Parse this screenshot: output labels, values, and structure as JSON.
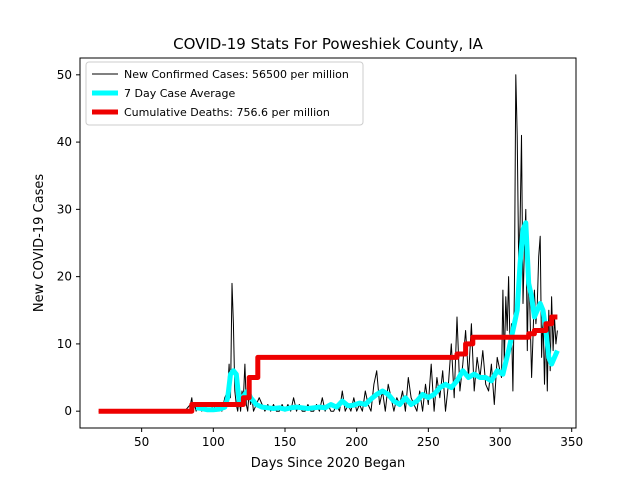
{
  "chart_data": {
    "type": "line",
    "title": "COVID-19 Stats For Poweshiek County, IA",
    "xlabel": "Days Since 2020 Began",
    "ylabel": "New COVID-19 Cases",
    "xlim": [
      7,
      353
    ],
    "ylim": [
      -2.5,
      52.5
    ],
    "xticks": [
      50,
      100,
      150,
      200,
      250,
      300,
      350
    ],
    "yticks": [
      0,
      10,
      20,
      30,
      40,
      50
    ],
    "grid": false,
    "legend_position": "top-left",
    "series": [
      {
        "name": "New Confirmed Cases: 56500 per million",
        "color": "#000000",
        "x": [
          20,
          80,
          84,
          85,
          86,
          87,
          88,
          90,
          92,
          94,
          96,
          98,
          100,
          102,
          104,
          106,
          108,
          110,
          111,
          112,
          113,
          114,
          115,
          116,
          117,
          118,
          119,
          120,
          121,
          122,
          123,
          124,
          125,
          126,
          127,
          128,
          130,
          132,
          134,
          136,
          138,
          140,
          142,
          144,
          146,
          148,
          150,
          152,
          154,
          156,
          158,
          160,
          162,
          164,
          166,
          168,
          170,
          172,
          174,
          176,
          178,
          180,
          182,
          184,
          186,
          188,
          190,
          192,
          194,
          196,
          198,
          200,
          202,
          204,
          206,
          208,
          210,
          212,
          214,
          216,
          218,
          220,
          222,
          224,
          226,
          228,
          230,
          232,
          234,
          236,
          238,
          240,
          242,
          244,
          246,
          248,
          250,
          252,
          254,
          256,
          258,
          260,
          262,
          264,
          266,
          268,
          270,
          272,
          274,
          276,
          278,
          280,
          282,
          284,
          286,
          288,
          290,
          292,
          294,
          296,
          298,
          300,
          301,
          302,
          303,
          304,
          305,
          306,
          307,
          308,
          309,
          310,
          311,
          312,
          313,
          314,
          315,
          316,
          317,
          318,
          319,
          320,
          321,
          322,
          323,
          324,
          325,
          326,
          327,
          328,
          329,
          330,
          331,
          332,
          333,
          334,
          335,
          336,
          337,
          338,
          339,
          340
        ],
        "y": [
          0,
          0,
          1,
          2,
          0,
          1,
          0,
          1,
          0,
          1,
          0,
          0,
          1,
          0,
          1,
          0,
          2,
          3,
          7,
          2,
          19,
          13,
          3,
          1,
          0,
          2,
          0,
          3,
          2,
          7,
          1,
          0,
          3,
          1,
          2,
          0,
          1,
          2,
          1,
          0,
          1,
          0,
          1,
          0,
          0,
          1,
          0,
          1,
          0,
          2,
          0,
          1,
          0,
          0,
          1,
          0,
          0,
          1,
          0,
          2,
          0,
          1,
          0,
          0,
          1,
          0,
          3,
          0,
          1,
          0,
          2,
          0,
          1,
          0,
          3,
          1,
          0,
          4,
          6,
          1,
          3,
          0,
          4,
          2,
          0,
          2,
          1,
          3,
          0,
          5,
          2,
          1,
          0,
          3,
          0,
          4,
          1,
          7,
          0,
          5,
          2,
          6,
          0,
          4,
          10,
          2,
          14,
          3,
          7,
          12,
          5,
          13,
          3,
          8,
          5,
          9,
          4,
          3,
          7,
          1,
          8,
          6,
          5,
          18,
          7,
          17,
          12,
          20,
          9,
          13,
          3,
          18,
          50,
          41,
          22,
          28,
          41,
          16,
          24,
          30,
          9,
          22,
          14,
          5,
          11,
          18,
          13,
          16,
          23,
          26,
          8,
          14,
          4,
          13,
          3,
          15,
          6,
          17,
          9,
          14,
          10,
          12
        ]
      },
      {
        "name": "7 Day Case Average",
        "color": "#00ffff",
        "x": [
          88,
          92,
          96,
          100,
          104,
          108,
          110,
          112,
          114,
          116,
          118,
          120,
          122,
          124,
          126,
          128,
          130,
          134,
          138,
          142,
          146,
          150,
          154,
          158,
          162,
          166,
          170,
          174,
          178,
          182,
          186,
          190,
          194,
          198,
          202,
          206,
          210,
          214,
          218,
          222,
          226,
          230,
          234,
          238,
          242,
          246,
          250,
          254,
          258,
          262,
          266,
          270,
          274,
          278,
          282,
          286,
          290,
          294,
          298,
          302,
          306,
          310,
          312,
          314,
          316,
          318,
          320,
          322,
          324,
          326,
          328,
          330,
          332,
          334,
          336,
          338,
          340
        ],
        "y": [
          0.5,
          0.4,
          0.2,
          0.2,
          0.3,
          0.6,
          2,
          5.5,
          6,
          5.5,
          1.5,
          2,
          2.5,
          3,
          2,
          1.5,
          1,
          0.6,
          0.5,
          0.4,
          0.5,
          0.3,
          0.5,
          0.6,
          0.5,
          0.4,
          0.5,
          0.6,
          0.5,
          1,
          0.6,
          1.5,
          0.8,
          0.9,
          1.2,
          1,
          1.8,
          2.5,
          3,
          2.5,
          1.5,
          1,
          2,
          1,
          1.5,
          2.5,
          2,
          2.5,
          3.5,
          4,
          3.5,
          4.5,
          6,
          5,
          5.5,
          5,
          5,
          4.5,
          6,
          5.5,
          9,
          13,
          15,
          22,
          27,
          28,
          19,
          17,
          14,
          15,
          16,
          15,
          12,
          8,
          7,
          8,
          9
        ]
      },
      {
        "name": "Cumulative Deaths: 756.6 per million",
        "color": "#ee0000",
        "x": [
          20,
          85,
          85,
          121,
          121,
          125,
          125,
          131,
          131,
          270,
          270,
          276,
          276,
          281,
          281,
          320,
          320,
          324,
          324,
          332,
          332,
          336,
          336,
          340
        ],
        "y": [
          0,
          0,
          1,
          1,
          2,
          2,
          5,
          5,
          8,
          8,
          8.5,
          8.5,
          10,
          10,
          11,
          11,
          11.5,
          11.5,
          12,
          12,
          13,
          13,
          14,
          14
        ]
      }
    ]
  }
}
